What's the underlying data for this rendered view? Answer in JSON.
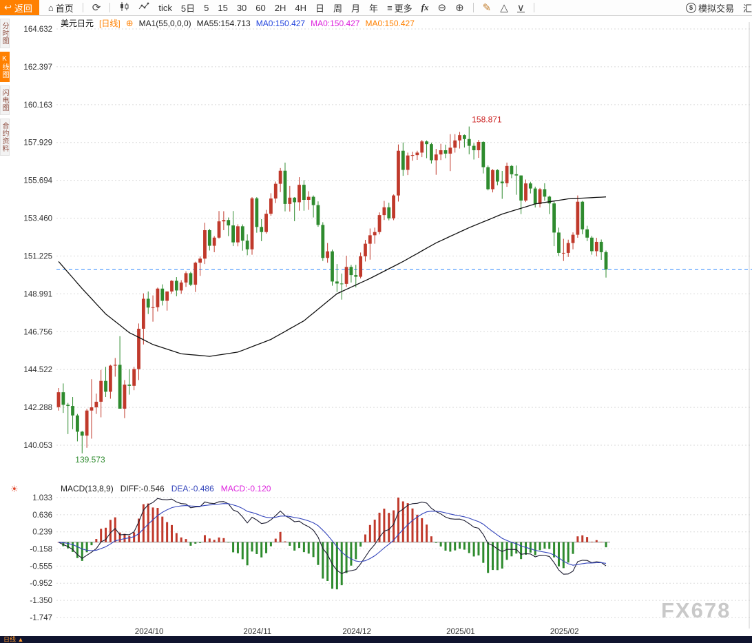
{
  "toolbar": {
    "back_label": "返回",
    "home_label": "首页",
    "tick_label": "tick",
    "five_day_label": "5日",
    "timeframes": [
      "5",
      "15",
      "30",
      "60",
      "2H",
      "4H",
      "日",
      "周",
      "月",
      "年"
    ],
    "more_label": "更多",
    "fx_label": "fx",
    "sim_trade_label": "模拟交易",
    "right_clipped_label": "汇"
  },
  "sidebar": {
    "tabs": [
      {
        "label": "分时图",
        "active": false
      },
      {
        "label": "K线图",
        "active": true
      },
      {
        "label": "闪电图",
        "active": false
      },
      {
        "label": "合约资料",
        "active": false
      }
    ]
  },
  "chart_header": {
    "symbol": "美元日元",
    "period_tag": "[日线]",
    "ma_param": "MA1(55,0,0,0)",
    "ma55": "MA55:154.713",
    "ma_values": [
      "MA0:150.427",
      "MA0:150.427",
      "MA0:150.427"
    ]
  },
  "macd_header": {
    "param": "MACD(13,8,9)",
    "diff": "DIFF:-0.546",
    "dea": "DEA:-0.486",
    "macd": "MACD:-0.120"
  },
  "bottom_bar": {
    "period_label": "日线 ▲"
  },
  "watermark": "FX678",
  "colors": {
    "up": "#c0392b",
    "down": "#2e8b2e",
    "ma55": "#111111",
    "diff": "#1a1a2e",
    "dea": "#3344bb",
    "dash": "#2f86ff",
    "grid": "#dadada",
    "axis_text": "#333333",
    "zero_line": "#888888",
    "annotation_high": "#cc2222",
    "annotation_low": "#2e8b2e",
    "accent_orange": "#ff8000"
  },
  "chart_data": {
    "type": "candlestick",
    "title": "美元日元 日线 (USD/JPY daily)",
    "y_axis": [
      "164.632",
      "162.397",
      "160.163",
      "157.929",
      "155.694",
      "153.460",
      "151.225",
      "148.991",
      "146.756",
      "144.522",
      "142.288",
      "140.053"
    ],
    "macd_axis": [
      "1.033",
      "0.636",
      "0.239",
      "-0.158",
      "-0.555",
      "-0.952",
      "-1.350",
      "-1.747"
    ],
    "x_labels": [
      {
        "label": "2024/10",
        "idx": 15
      },
      {
        "label": "2024/11",
        "idx": 38
      },
      {
        "label": "2024/12",
        "idx": 59
      },
      {
        "label": "2025/01",
        "idx": 81
      },
      {
        "label": "2025/02",
        "idx": 103
      }
    ],
    "current_price": 150.427,
    "annotations": {
      "high": {
        "idx": 87,
        "price": 158.871,
        "text": "158.871"
      },
      "low": {
        "idx": 5,
        "price": 139.573,
        "text": "139.573"
      }
    },
    "macd_params": {
      "short": 8,
      "long": 13,
      "signal": 9
    },
    "ma55_anchors": [
      [
        0,
        150.9
      ],
      [
        5,
        149.3
      ],
      [
        10,
        147.8
      ],
      [
        15,
        146.7
      ],
      [
        20,
        146.0
      ],
      [
        26,
        145.45
      ],
      [
        32,
        145.3
      ],
      [
        38,
        145.55
      ],
      [
        45,
        146.3
      ],
      [
        52,
        147.4
      ],
      [
        59,
        149.0
      ],
      [
        66,
        149.9
      ],
      [
        73,
        150.9
      ],
      [
        80,
        152.0
      ],
      [
        87,
        152.9
      ],
      [
        94,
        153.7
      ],
      [
        101,
        154.3
      ],
      [
        108,
        154.6
      ],
      [
        116,
        154.713
      ]
    ],
    "candles": [
      [
        142.3,
        143.43,
        142.1,
        143.18
      ],
      [
        143.18,
        143.7,
        141.96,
        142.44
      ],
      [
        142.44,
        142.55,
        140.71,
        142.37
      ],
      [
        142.37,
        142.9,
        141.0,
        141.81
      ],
      [
        141.81,
        141.9,
        140.28,
        140.85
      ],
      [
        140.85,
        140.9,
        139.573,
        140.62
      ],
      [
        140.62,
        142.2,
        139.9,
        142.1
      ],
      [
        142.1,
        143.95,
        140.44,
        142.29
      ],
      [
        142.29,
        143.1,
        141.9,
        142.62
      ],
      [
        142.62,
        144.5,
        141.7,
        143.85
      ],
      [
        143.85,
        144.68,
        142.9,
        143.21
      ],
      [
        143.21,
        144.8,
        142.8,
        144.75
      ],
      [
        144.75,
        145.2,
        144.1,
        144.8
      ],
      [
        144.8,
        146.49,
        142.79,
        142.21
      ],
      [
        142.21,
        143.9,
        141.65,
        143.63
      ],
      [
        143.63,
        144.54,
        143.04,
        143.56
      ],
      [
        143.56,
        144.68,
        143.3,
        144.55
      ],
      [
        144.55,
        147.24,
        143.9,
        146.93
      ],
      [
        146.93,
        149.02,
        146.0,
        148.7
      ],
      [
        148.7,
        149.13,
        147.8,
        148.18
      ],
      [
        148.18,
        148.9,
        147.35,
        148.2
      ],
      [
        148.2,
        149.36,
        147.95,
        149.3
      ],
      [
        149.3,
        149.55,
        148.3,
        148.58
      ],
      [
        148.58,
        149.14,
        148.0,
        149.13
      ],
      [
        149.13,
        149.8,
        149.0,
        149.76
      ],
      [
        149.76,
        149.98,
        148.85,
        149.19
      ],
      [
        149.19,
        149.8,
        149.0,
        149.66
      ],
      [
        149.66,
        150.32,
        149.4,
        150.21
      ],
      [
        150.21,
        150.29,
        149.45,
        149.53
      ],
      [
        149.53,
        150.89,
        149.1,
        150.83
      ],
      [
        150.83,
        151.2,
        150.05,
        151.07
      ],
      [
        151.07,
        153.19,
        150.75,
        152.75
      ],
      [
        152.75,
        152.83,
        151.55,
        151.83
      ],
      [
        151.83,
        152.4,
        151.45,
        152.31
      ],
      [
        152.31,
        153.88,
        152.25,
        153.27
      ],
      [
        153.27,
        153.87,
        152.75,
        153.35
      ],
      [
        153.35,
        153.5,
        152.4,
        153.03
      ],
      [
        153.03,
        153.88,
        151.81,
        152.03
      ],
      [
        152.03,
        153.1,
        151.8,
        152.98
      ],
      [
        152.98,
        153.09,
        151.54,
        152.13
      ],
      [
        152.13,
        152.5,
        151.27,
        151.62
      ],
      [
        151.62,
        154.7,
        151.3,
        154.63
      ],
      [
        154.63,
        154.7,
        152.6,
        152.94
      ],
      [
        152.94,
        153.4,
        152.1,
        152.64
      ],
      [
        152.64,
        153.95,
        152.55,
        153.72
      ],
      [
        153.72,
        154.93,
        153.6,
        154.62
      ],
      [
        154.62,
        155.62,
        154.35,
        155.49
      ],
      [
        155.49,
        156.42,
        155.0,
        156.26
      ],
      [
        156.26,
        156.74,
        153.86,
        154.3
      ],
      [
        154.3,
        155.36,
        153.85,
        154.67
      ],
      [
        154.67,
        154.7,
        153.28,
        154.4
      ],
      [
        154.4,
        155.88,
        153.9,
        155.43
      ],
      [
        155.43,
        155.7,
        153.9,
        154.54
      ],
      [
        154.54,
        155.05,
        153.95,
        154.72
      ],
      [
        154.72,
        154.8,
        153.5,
        154.23
      ],
      [
        154.23,
        154.45,
        152.95,
        153.06
      ],
      [
        153.06,
        153.22,
        150.93,
        151.11
      ],
      [
        151.11,
        151.99,
        150.83,
        151.5
      ],
      [
        151.5,
        151.6,
        149.47,
        149.72
      ],
      [
        149.72,
        150.75,
        149.1,
        149.6
      ],
      [
        149.6,
        150.19,
        148.65,
        149.58
      ],
      [
        149.58,
        151.24,
        149.4,
        150.58
      ],
      [
        150.58,
        150.7,
        149.66,
        150.1
      ],
      [
        150.1,
        150.7,
        149.37,
        150.0
      ],
      [
        150.0,
        151.43,
        149.9,
        151.21
      ],
      [
        151.21,
        152.18,
        150.9,
        151.95
      ],
      [
        151.95,
        152.85,
        151.01,
        152.45
      ],
      [
        152.45,
        152.9,
        151.95,
        152.64
      ],
      [
        152.64,
        153.8,
        152.5,
        153.64
      ],
      [
        153.64,
        154.48,
        153.35,
        154.1
      ],
      [
        154.1,
        154.37,
        153.33,
        153.45
      ],
      [
        153.45,
        154.86,
        153.34,
        154.8
      ],
      [
        154.8,
        157.81,
        154.44,
        157.44
      ],
      [
        157.44,
        157.93,
        155.96,
        156.31
      ],
      [
        156.31,
        157.33,
        156.0,
        157.16
      ],
      [
        157.16,
        157.38,
        156.85,
        157.18
      ],
      [
        157.18,
        157.44,
        156.9,
        157.33
      ],
      [
        157.33,
        158.08,
        157.06,
        157.99
      ],
      [
        157.99,
        158.05,
        157.0,
        157.83
      ],
      [
        157.83,
        157.92,
        156.68,
        156.88
      ],
      [
        156.88,
        157.55,
        156.02,
        157.22
      ],
      [
        157.22,
        157.85,
        156.89,
        157.47
      ],
      [
        157.47,
        157.8,
        157.0,
        157.27
      ],
      [
        157.27,
        158.42,
        156.24,
        157.62
      ],
      [
        157.62,
        158.42,
        157.33,
        158.05
      ],
      [
        158.05,
        158.55,
        157.57,
        158.36
      ],
      [
        158.36,
        158.4,
        157.63,
        158.13
      ],
      [
        158.13,
        158.871,
        157.23,
        157.73
      ],
      [
        157.73,
        157.89,
        156.92,
        157.47
      ],
      [
        157.47,
        158.08,
        157.02,
        157.96
      ],
      [
        157.96,
        158.0,
        156.1,
        156.47
      ],
      [
        156.47,
        156.57,
        155.1,
        155.17
      ],
      [
        155.17,
        156.36,
        154.98,
        156.3
      ],
      [
        156.3,
        156.35,
        155.4,
        155.62
      ],
      [
        155.62,
        156.25,
        154.6,
        155.52
      ],
      [
        155.52,
        156.74,
        155.31,
        156.54
      ],
      [
        156.54,
        156.6,
        155.82,
        156.05
      ],
      [
        156.05,
        156.57,
        154.84,
        155.98
      ],
      [
        155.98,
        155.99,
        153.7,
        154.5
      ],
      [
        154.5,
        155.74,
        154.41,
        155.51
      ],
      [
        155.51,
        155.61,
        154.92,
        155.21
      ],
      [
        155.21,
        155.32,
        154.09,
        154.3
      ],
      [
        154.3,
        155.24,
        154.09,
        155.17
      ],
      [
        155.17,
        155.52,
        154.49,
        154.73
      ],
      [
        154.73,
        154.79,
        153.7,
        154.33
      ],
      [
        154.33,
        154.44,
        151.81,
        152.61
      ],
      [
        152.61,
        152.9,
        151.22,
        151.41
      ],
      [
        151.41,
        152.24,
        150.93,
        151.41
      ],
      [
        151.41,
        152.19,
        151.17,
        151.99
      ],
      [
        151.99,
        152.62,
        151.62,
        152.48
      ],
      [
        152.48,
        154.8,
        152.3,
        154.43
      ],
      [
        154.43,
        154.48,
        152.51,
        152.8
      ],
      [
        152.8,
        153.01,
        152.1,
        152.31
      ],
      [
        152.31,
        152.41,
        151.3,
        151.51
      ],
      [
        151.51,
        152.3,
        151.2,
        152.06
      ],
      [
        152.06,
        152.2,
        151.0,
        151.45
      ],
      [
        151.45,
        151.55,
        149.95,
        150.43
      ]
    ]
  }
}
